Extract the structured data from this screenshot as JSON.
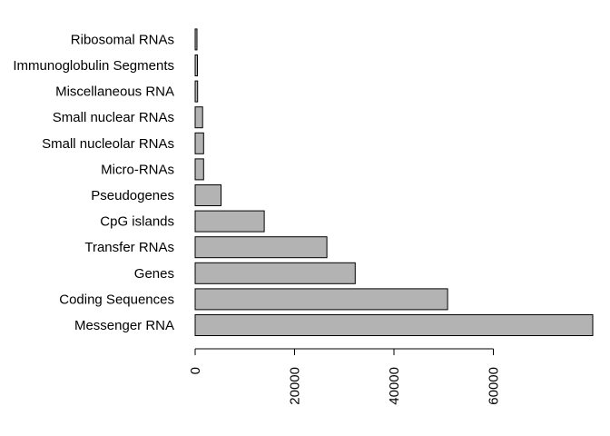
{
  "chart_data": {
    "type": "bar",
    "orientation": "horizontal",
    "categories": [
      "Messenger RNA",
      "Coding Sequences",
      "Genes",
      "Transfer RNAs",
      "CpG islands",
      "Pseudogenes",
      "Micro-RNAs",
      "Small nucleolar RNAs",
      "Small nuclear RNAs",
      "Miscellaneous RNA",
      "Immunoglobulin Segments",
      "Ribosomal RNAs"
    ],
    "values": [
      80000,
      50800,
      32200,
      26500,
      13900,
      5200,
      1700,
      1700,
      1500,
      500,
      450,
      350
    ],
    "title": "",
    "xlabel": "",
    "ylabel": "",
    "xlim": [
      0,
      80000
    ],
    "x_ticks": [
      0,
      20000,
      40000,
      60000
    ],
    "x_tick_labels": [
      "0",
      "20000",
      "40000",
      "60000"
    ],
    "grid": false,
    "bar_color": "#b3b3b3",
    "bar_border_color": "#000000"
  }
}
